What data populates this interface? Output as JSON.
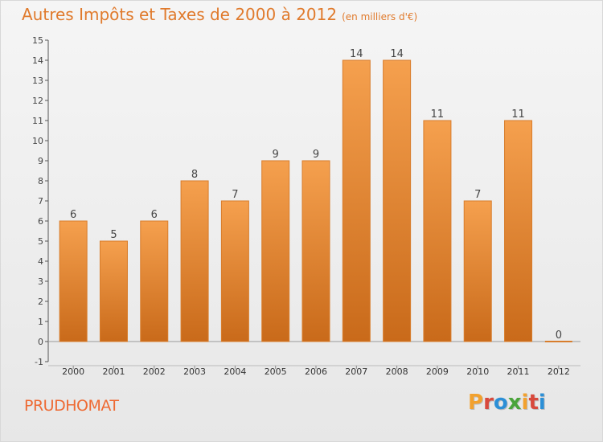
{
  "header": {
    "title": "Autres Impôts et Taxes de 2000 à 2012",
    "subtitle": "(en milliers d'€)"
  },
  "place": "PRUDHOMAT",
  "logo": {
    "text": "Proxiti",
    "letters": [
      "P",
      "r",
      "o",
      "x",
      "i",
      "t",
      "i"
    ],
    "colors": [
      "#f2a12e",
      "#d8493c",
      "#2c8fd6",
      "#4aa43a",
      "#f2a12e",
      "#d8493c",
      "#2c8fd6"
    ]
  },
  "colors": {
    "bar_top": "#f5a04e",
    "bar_bottom": "#c96a1a",
    "bar_edge": "#d87d2c",
    "title": "#e07a2c",
    "place": "#ee6a33"
  },
  "chart_data": {
    "type": "bar",
    "categories": [
      "2000",
      "2001",
      "2002",
      "2003",
      "2004",
      "2005",
      "2006",
      "2007",
      "2008",
      "2009",
      "2010",
      "2011",
      "2012"
    ],
    "values": [
      6,
      5,
      6,
      8,
      7,
      9,
      9,
      14,
      14,
      11,
      7,
      11,
      0
    ],
    "data_labels": [
      "6",
      "5",
      "6",
      "8",
      "7",
      "9",
      "9",
      "14",
      "14",
      "11",
      "7",
      "11",
      "0"
    ],
    "yticks": [
      "-1",
      "0",
      "1",
      "2",
      "3",
      "4",
      "5",
      "6",
      "7",
      "8",
      "9",
      "10",
      "11",
      "12",
      "13",
      "14",
      "15"
    ],
    "ylim": [
      -1,
      15
    ],
    "title": "Autres Impôts et Taxes de 2000 à 2012",
    "xlabel": "",
    "ylabel": "",
    "grid": false
  }
}
